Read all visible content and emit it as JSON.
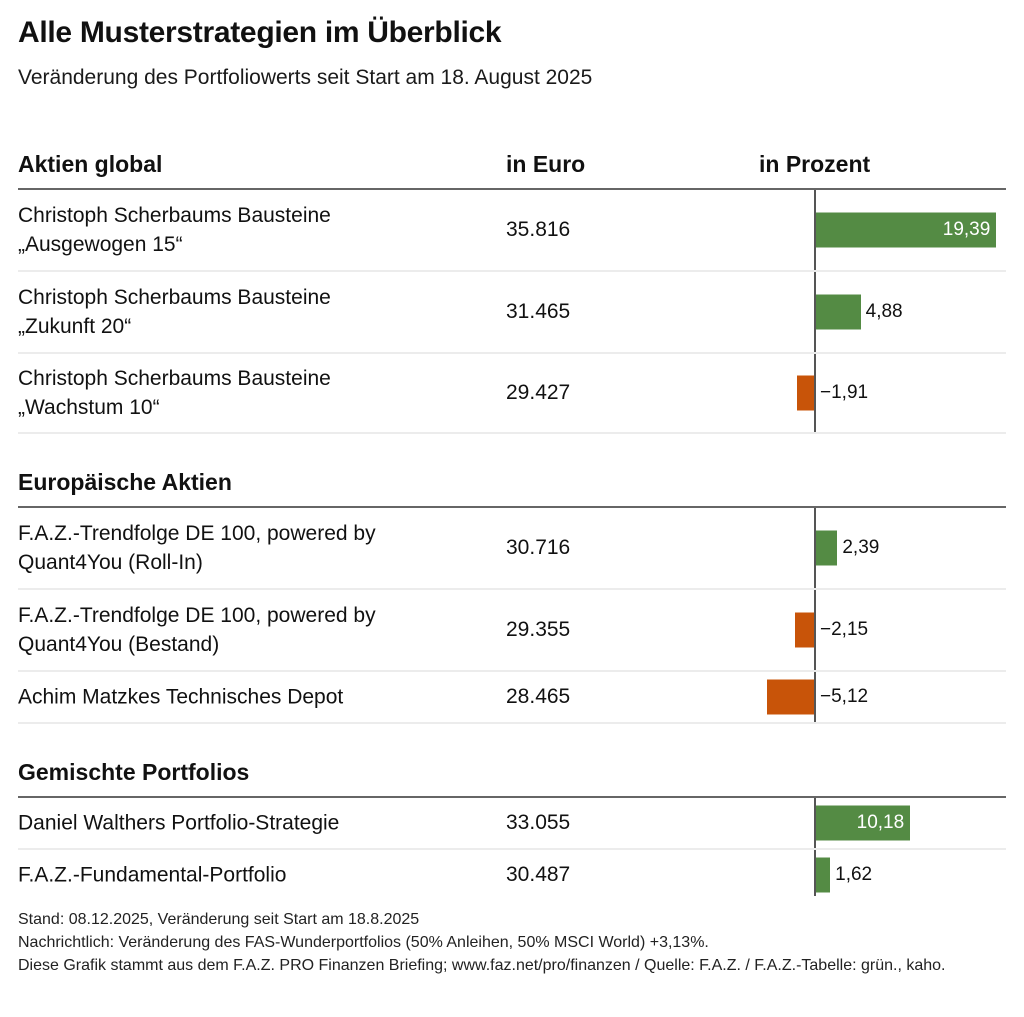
{
  "header": {
    "title": "Alle Musterstrategien im Überblick",
    "subtitle": "Veränderung des Portfoliowerts seit Start am 18. August 2025"
  },
  "columns": {
    "euro": "in Euro",
    "percent": "in Prozent"
  },
  "colors": {
    "positive": "#548b44",
    "negative": "#c85409"
  },
  "sections": [
    {
      "title": "Aktien global",
      "rows": [
        {
          "name": "Christoph Scherbaums Bausteine\n„Ausgewogen 15“",
          "euro": "35.816",
          "pct": 19.39,
          "pct_label": "19,39"
        },
        {
          "name": "Christoph Scherbaums Bausteine\n„Zukunft 20“",
          "euro": "31.465",
          "pct": 4.88,
          "pct_label": "4,88"
        },
        {
          "name": "Christoph Scherbaums Bausteine\n„Wachstum 10“",
          "euro": "29.427",
          "pct": -1.91,
          "pct_label": "−1,91"
        }
      ]
    },
    {
      "title": "Europäische Aktien",
      "rows": [
        {
          "name": "F.A.Z.-Trendfolge DE 100, powered by\nQuant4You (Roll-In)",
          "euro": "30.716",
          "pct": 2.39,
          "pct_label": "2,39"
        },
        {
          "name": "F.A.Z.-Trendfolge DE 100, powered by\nQuant4You (Bestand)",
          "euro": "29.355",
          "pct": -2.15,
          "pct_label": "−2,15"
        },
        {
          "name": "Achim Matzkes Technisches Depot",
          "euro": "28.465",
          "pct": -5.12,
          "pct_label": "−5,12"
        }
      ]
    },
    {
      "title": "Gemischte Portfolios",
      "rows": [
        {
          "name": "Daniel Walthers Portfolio-Strategie",
          "euro": "33.055",
          "pct": 10.18,
          "pct_label": "10,18"
        },
        {
          "name": "F.A.Z.-Fundamental-Portfolio",
          "euro": "30.487",
          "pct": 1.62,
          "pct_label": "1,62"
        }
      ]
    }
  ],
  "footer": {
    "line1": "Stand: 08.12.2025, Veränderung seit Start am 18.8.2025",
    "line2": "Nachrichtlich: Veränderung des FAS-Wunderportfolios (50% Anleihen, 50% MSCI World)  +3,13%.",
    "line3": "Diese Grafik stammt aus dem F.A.Z. PRO Finanzen Briefing; www.faz.net/pro/finanzen / Quelle: F.A.Z. / F.A.Z.-Tabelle: grün., kaho."
  },
  "chart_data": {
    "type": "bar",
    "orientation": "horizontal",
    "title": "Alle Musterstrategien im Überblick",
    "subtitle": "Veränderung des Portfoliowerts seit Start am 18. August 2025",
    "xlabel": "in Prozent",
    "categories": [
      "Christoph Scherbaums Bausteine „Ausgewogen 15“",
      "Christoph Scherbaums Bausteine „Zukunft 20“",
      "Christoph Scherbaums Bausteine „Wachstum 10“",
      "F.A.Z.-Trendfolge DE 100, powered by Quant4You (Roll-In)",
      "F.A.Z.-Trendfolge DE 100, powered by Quant4You (Bestand)",
      "Achim Matzkes Technisches Depot",
      "Daniel Walthers Portfolio-Strategie",
      "F.A.Z.-Fundamental-Portfolio"
    ],
    "groups": [
      "Aktien global",
      "Aktien global",
      "Aktien global",
      "Europäische Aktien",
      "Europäische Aktien",
      "Europäische Aktien",
      "Gemischte Portfolios",
      "Gemischte Portfolios"
    ],
    "values": [
      19.39,
      4.88,
      -1.91,
      2.39,
      -2.15,
      -5.12,
      10.18,
      1.62
    ],
    "euro_values": [
      35816,
      31465,
      29427,
      30716,
      29355,
      28465,
      33055,
      30487
    ],
    "xlim": [
      -10,
      21
    ],
    "grid": false,
    "legend": "none"
  }
}
